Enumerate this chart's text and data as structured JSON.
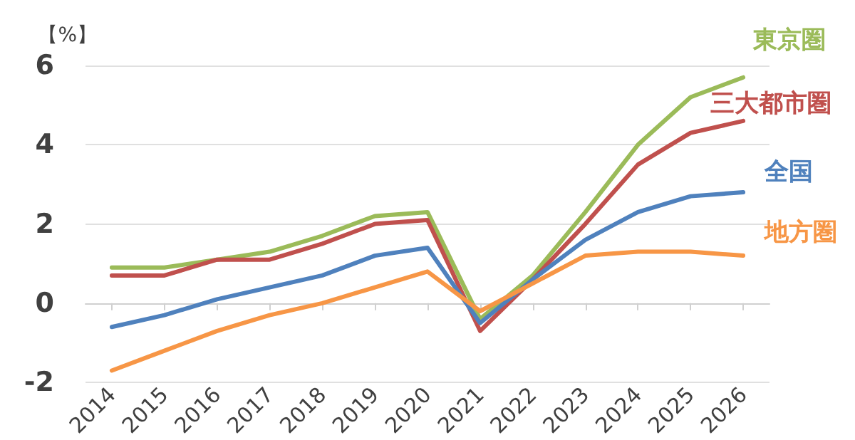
{
  "chart_data": {
    "type": "line",
    "ylabel": "【%】",
    "categories": [
      "2014",
      "2015",
      "2016",
      "2017",
      "2018",
      "2019",
      "2020",
      "2021",
      "2022",
      "2023",
      "2024",
      "2025",
      "2026"
    ],
    "series": [
      {
        "name": "東京圏",
        "color": "#9bbb59",
        "values": [
          0.9,
          0.9,
          1.1,
          1.3,
          1.7,
          2.2,
          2.3,
          -0.4,
          0.7,
          2.3,
          4.0,
          5.2,
          5.7
        ]
      },
      {
        "name": "三大都市圏",
        "color": "#c0504d",
        "values": [
          0.7,
          0.7,
          1.1,
          1.1,
          1.5,
          2.0,
          2.1,
          -0.7,
          0.6,
          2.0,
          3.5,
          4.3,
          4.6
        ]
      },
      {
        "name": "全国",
        "color": "#4f81bd",
        "values": [
          -0.6,
          -0.3,
          0.1,
          0.4,
          0.7,
          1.2,
          1.4,
          -0.5,
          0.6,
          1.6,
          2.3,
          2.7,
          2.8
        ]
      },
      {
        "name": "地方圏",
        "color": "#f79646",
        "values": [
          -1.7,
          -1.2,
          -0.7,
          -0.3,
          0.0,
          0.4,
          0.8,
          -0.2,
          0.5,
          1.2,
          1.3,
          1.3,
          1.2
        ]
      }
    ],
    "ylim": [
      -2,
      6
    ],
    "yticks": [
      -2,
      0,
      2,
      4,
      6
    ],
    "grid": "y",
    "legend": false,
    "marker": "none",
    "line_style": "solid"
  }
}
